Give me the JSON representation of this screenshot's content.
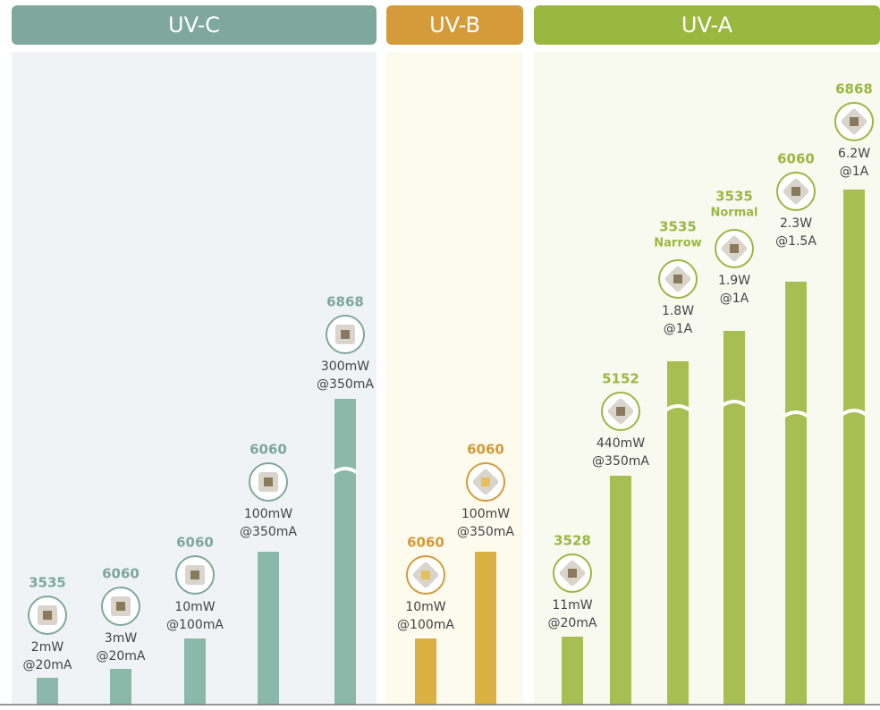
{
  "groups": [
    {
      "title": "UV-C",
      "color": "#7ea89b",
      "bar_color": "#8bb9a9",
      "panel_color": "#f0f3f6",
      "items": [
        {
          "package": "3535",
          "power": "2mW",
          "current": "@20mA"
        },
        {
          "package": "6060",
          "power": "3mW",
          "current": "@20mA"
        },
        {
          "package": "6060",
          "power": "10mW",
          "current": "@100mA"
        },
        {
          "package": "6060",
          "power": "100mW",
          "current": "@350mA"
        },
        {
          "package": "6868",
          "power": "300mW",
          "current": "@350mA"
        }
      ]
    },
    {
      "title": "UV-B",
      "color": "#d59a3a",
      "bar_color": "#dbb043",
      "panel_color": "#fdfaee",
      "items": [
        {
          "package": "6060",
          "power": "10mW",
          "current": "@100mA"
        },
        {
          "package": "6060",
          "power": "100mW",
          "current": "@350mA"
        }
      ]
    },
    {
      "title": "UV-A",
      "color": "#9ab740",
      "bar_color": "#a7bf52",
      "panel_color": "#f8faf0",
      "items": [
        {
          "package": "3528",
          "power": "11mW",
          "current": "@20mA"
        },
        {
          "package": "5152",
          "power": "440mW",
          "current": "@350mA"
        },
        {
          "package": "3535",
          "variant": "Narrow",
          "power": "1.8W",
          "current": "@1A"
        },
        {
          "package": "3535",
          "variant": "Normal",
          "power": "1.9W",
          "current": "@1A"
        },
        {
          "package": "6060",
          "power": "2.3W",
          "current": "@1.5A"
        },
        {
          "package": "6868",
          "power": "6.2W",
          "current": "@1A"
        }
      ]
    }
  ]
}
